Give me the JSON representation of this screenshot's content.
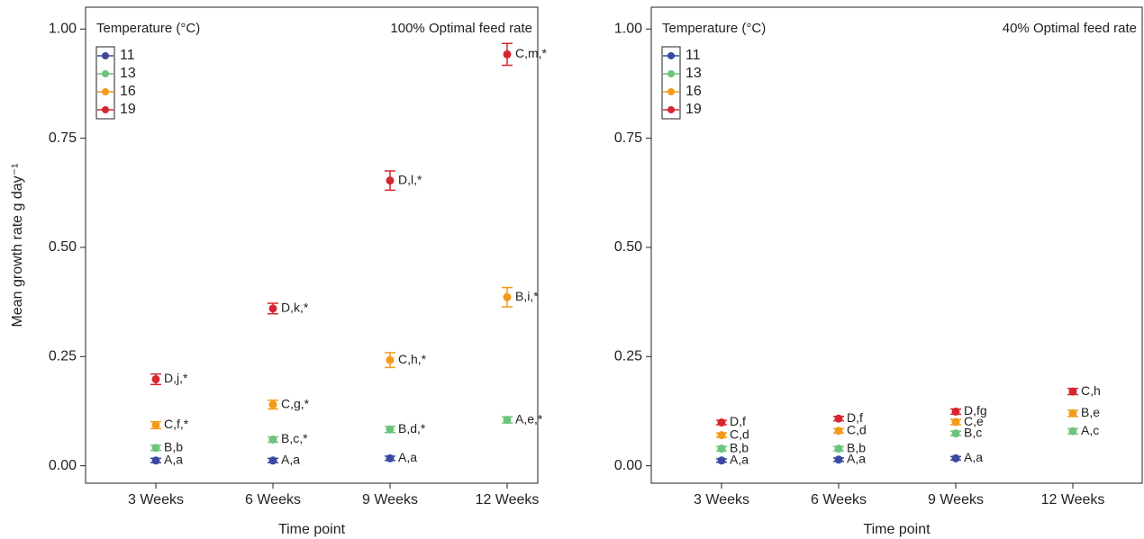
{
  "chart_data": [
    {
      "type": "errorbar",
      "title": "100% Optimal feed rate",
      "legend_title": "Temperature (°C)",
      "ylabel": "Mean growth rate g day⁻¹",
      "xlabel": "Time point",
      "categories": [
        "3 Weeks",
        "6 Weeks",
        "9 Weeks",
        "12 Weeks"
      ],
      "ylim": [
        -0.04,
        1.05
      ],
      "yticks": [
        {
          "value": 0,
          "label": "0.00"
        },
        {
          "value": 0.25,
          "label": "0.25"
        },
        {
          "value": 0.5,
          "label": "0.50"
        },
        {
          "value": 0.75,
          "label": "0.75"
        },
        {
          "value": 1,
          "label": "1.00"
        }
      ],
      "series": [
        {
          "name": "11",
          "color": "#3a4aa0",
          "values": [
            0.012,
            0.012,
            0.017,
            null
          ],
          "errors": [
            0.005,
            0.005,
            0.005,
            null
          ],
          "labels": [
            "A,a",
            "A,a",
            "A,a",
            null
          ]
        },
        {
          "name": "13",
          "color": "#6cc47a",
          "values": [
            0.041,
            0.06,
            0.083,
            0.105
          ],
          "errors": [
            0.006,
            0.006,
            0.007,
            0.007
          ],
          "labels": [
            "B,b",
            "B,c,*",
            "B,d,*",
            "A,e,*"
          ]
        },
        {
          "name": "16",
          "color": "#f49a1a",
          "values": [
            0.093,
            0.14,
            0.242,
            0.386
          ],
          "errors": [
            0.008,
            0.01,
            0.017,
            0.022
          ],
          "labels": [
            "C,f,*",
            "C,g,*",
            "C,h,*",
            "B,i,*"
          ]
        },
        {
          "name": "19",
          "color": "#d62630",
          "values": [
            0.198,
            0.36,
            0.653,
            0.942
          ],
          "errors": [
            0.012,
            0.012,
            0.022,
            0.025
          ],
          "labels": [
            "D,j,*",
            "D,k,*",
            "D,l,*",
            "C,m,*"
          ]
        }
      ]
    },
    {
      "type": "errorbar",
      "title": "40% Optimal feed rate",
      "legend_title": "Temperature (°C)",
      "xlabel": "Time point",
      "categories": [
        "3 Weeks",
        "6 Weeks",
        "9 Weeks",
        "12 Weeks"
      ],
      "ylim": [
        -0.04,
        1.05
      ],
      "yticks": [
        {
          "value": 0,
          "label": "0.00"
        },
        {
          "value": 0.25,
          "label": "0.25"
        },
        {
          "value": 0.5,
          "label": "0.50"
        },
        {
          "value": 0.75,
          "label": "0.75"
        },
        {
          "value": 1,
          "label": "1.00"
        }
      ],
      "series": [
        {
          "name": "11",
          "color": "#3a4aa0",
          "values": [
            0.012,
            0.014,
            0.017,
            null
          ],
          "errors": [
            0.004,
            0.004,
            0.004,
            null
          ],
          "labels": [
            "A,a",
            "A,a",
            "A,a",
            null
          ]
        },
        {
          "name": "13",
          "color": "#6cc47a",
          "values": [
            0.039,
            0.039,
            0.074,
            0.079
          ],
          "errors": [
            0.005,
            0.005,
            0.005,
            0.006
          ],
          "labels": [
            "B,b",
            "B,b",
            "B,c",
            "A,c"
          ]
        },
        {
          "name": "16",
          "color": "#f49a1a",
          "values": [
            0.07,
            0.08,
            0.1,
            0.12
          ],
          "errors": [
            0.005,
            0.005,
            0.006,
            0.007
          ],
          "labels": [
            "C,d",
            "C,d",
            "C,e",
            "B,e"
          ]
        },
        {
          "name": "19",
          "color": "#d62630",
          "values": [
            0.099,
            0.108,
            0.124,
            0.17
          ],
          "errors": [
            0.005,
            0.005,
            0.006,
            0.007
          ],
          "labels": [
            "D,f",
            "D,f",
            "D,fg",
            "C,h"
          ]
        }
      ]
    }
  ]
}
